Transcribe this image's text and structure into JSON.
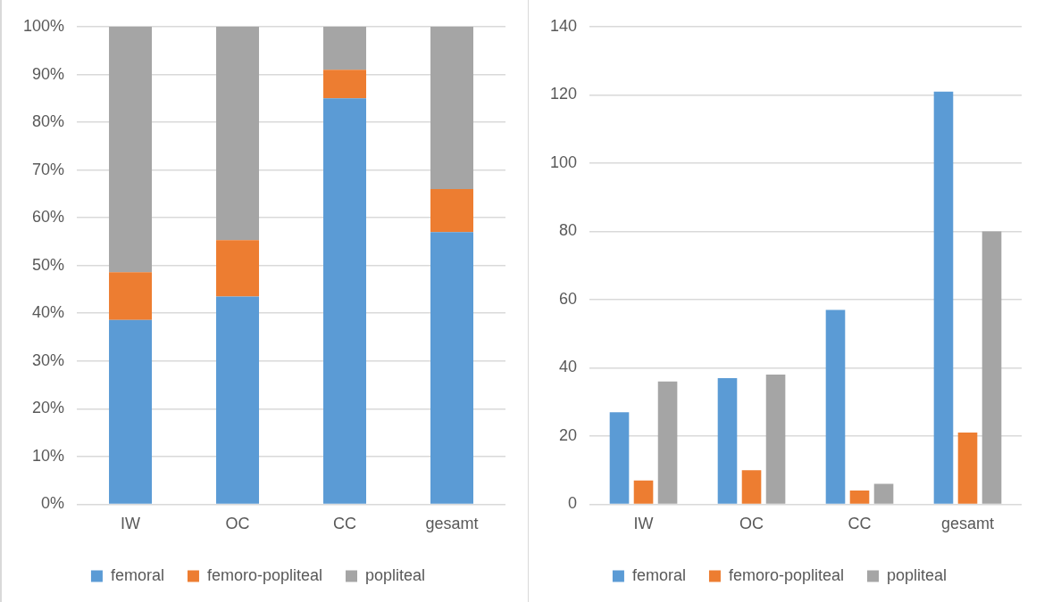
{
  "chart_data": [
    {
      "type": "bar",
      "stacked": true,
      "categories": [
        "IW",
        "OC",
        "CC",
        "gesamt"
      ],
      "series": [
        {
          "name": "femoral",
          "color": "#5b9bd5",
          "values": [
            38.6,
            43.5,
            85,
            57
          ]
        },
        {
          "name": "femoro-popliteal",
          "color": "#ed7d31",
          "values": [
            10,
            11.8,
            6,
            9
          ]
        },
        {
          "name": "popliteal",
          "color": "#a5a5a5",
          "values": [
            51.4,
            44.7,
            9,
            34
          ]
        }
      ],
      "ylim": [
        0,
        100
      ],
      "yticks": [
        {
          "value": 0,
          "label": "0%"
        },
        {
          "value": 10,
          "label": "10%"
        },
        {
          "value": 20,
          "label": "20%"
        },
        {
          "value": 30,
          "label": "30%"
        },
        {
          "value": 40,
          "label": "40%"
        },
        {
          "value": 50,
          "label": "50%"
        },
        {
          "value": 60,
          "label": "60%"
        },
        {
          "value": 70,
          "label": "70%"
        },
        {
          "value": 80,
          "label": "80%"
        },
        {
          "value": 90,
          "label": "90%"
        },
        {
          "value": 100,
          "label": "100%"
        }
      ],
      "grid": "y",
      "legend": "bottom"
    },
    {
      "type": "bar",
      "categories": [
        "IW",
        "OC",
        "CC",
        "gesamt"
      ],
      "series": [
        {
          "name": "femoral",
          "color": "#5b9bd5",
          "values": [
            27,
            37,
            57,
            121
          ]
        },
        {
          "name": "femoro-popliteal",
          "color": "#ed7d31",
          "values": [
            7,
            10,
            4,
            21
          ]
        },
        {
          "name": "popliteal",
          "color": "#a5a5a5",
          "values": [
            36,
            38,
            6,
            80
          ]
        }
      ],
      "ylim": [
        0,
        140
      ],
      "yticks": [
        0,
        20,
        40,
        60,
        80,
        100,
        120,
        140
      ],
      "grid": "y",
      "legend": "bottom"
    }
  ]
}
